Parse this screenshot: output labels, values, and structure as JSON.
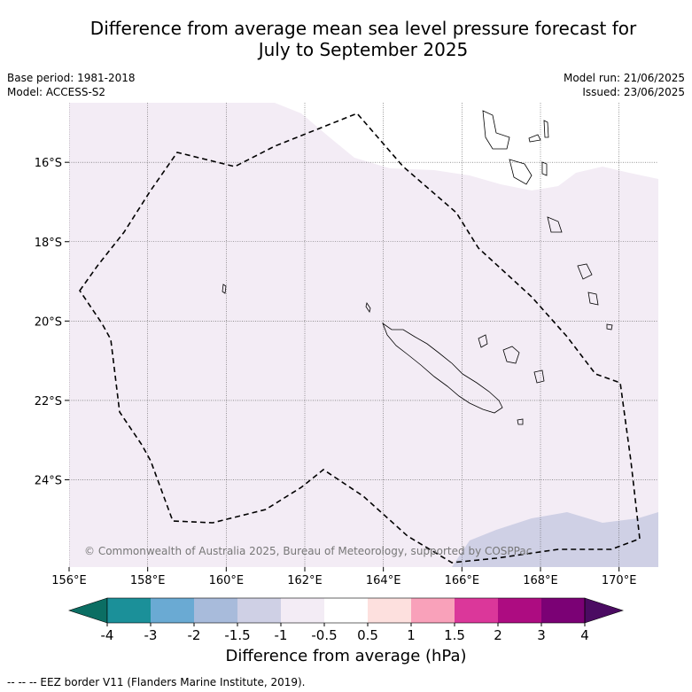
{
  "title": {
    "line1": "Difference from average mean sea level pressure forecast for",
    "line2": "July to September 2025"
  },
  "meta": {
    "base_period": "Base period: 1981-2018",
    "model": "Model: ACCESS-S2",
    "model_run": "Model run: 21/06/2025",
    "issued": "Issued: 23/06/2025"
  },
  "map": {
    "projection": "lat-lon",
    "lon_range": [
      156,
      171
    ],
    "lat_range": [
      -26.2,
      -14.5
    ],
    "lon_ticks": [
      "156°E",
      "158°E",
      "160°E",
      "162°E",
      "164°E",
      "166°E",
      "168°E",
      "170°E"
    ],
    "lat_ticks": [
      "16°S",
      "18°S",
      "20°S",
      "22°S",
      "24°S"
    ],
    "grid": true,
    "copyright": "© Commonwealth of Australia 2025, Bureau of Meteorology, supported by COSPPac",
    "shaded_regions": [
      {
        "category": "-1 to -0.5",
        "color": "#f3ecf5",
        "location": "north and west of domain"
      },
      {
        "category": "-1.5 to -1",
        "color": "#cfd0e5",
        "location": "south-east corner"
      }
    ]
  },
  "colorbar": {
    "title": "Difference from average (hPa)",
    "labels": [
      "-4",
      "-3",
      "-2",
      "-1.5",
      "-1",
      "-0.5",
      "0.5",
      "1",
      "1.5",
      "2",
      "3",
      "4"
    ],
    "under_color": "#0b6e63",
    "over_color": "#4b0b62",
    "colors": [
      "#1b9099",
      "#6aaad3",
      "#a8bbdb",
      "#cfd0e5",
      "#f3ecf5",
      "#ffffff",
      "#fde0de",
      "#f9a1ba",
      "#db379a",
      "#ad0c81",
      "#7b0175"
    ]
  },
  "footnote": "-- -- -- EEZ border V11 (Flanders Marine Institute, 2019)."
}
